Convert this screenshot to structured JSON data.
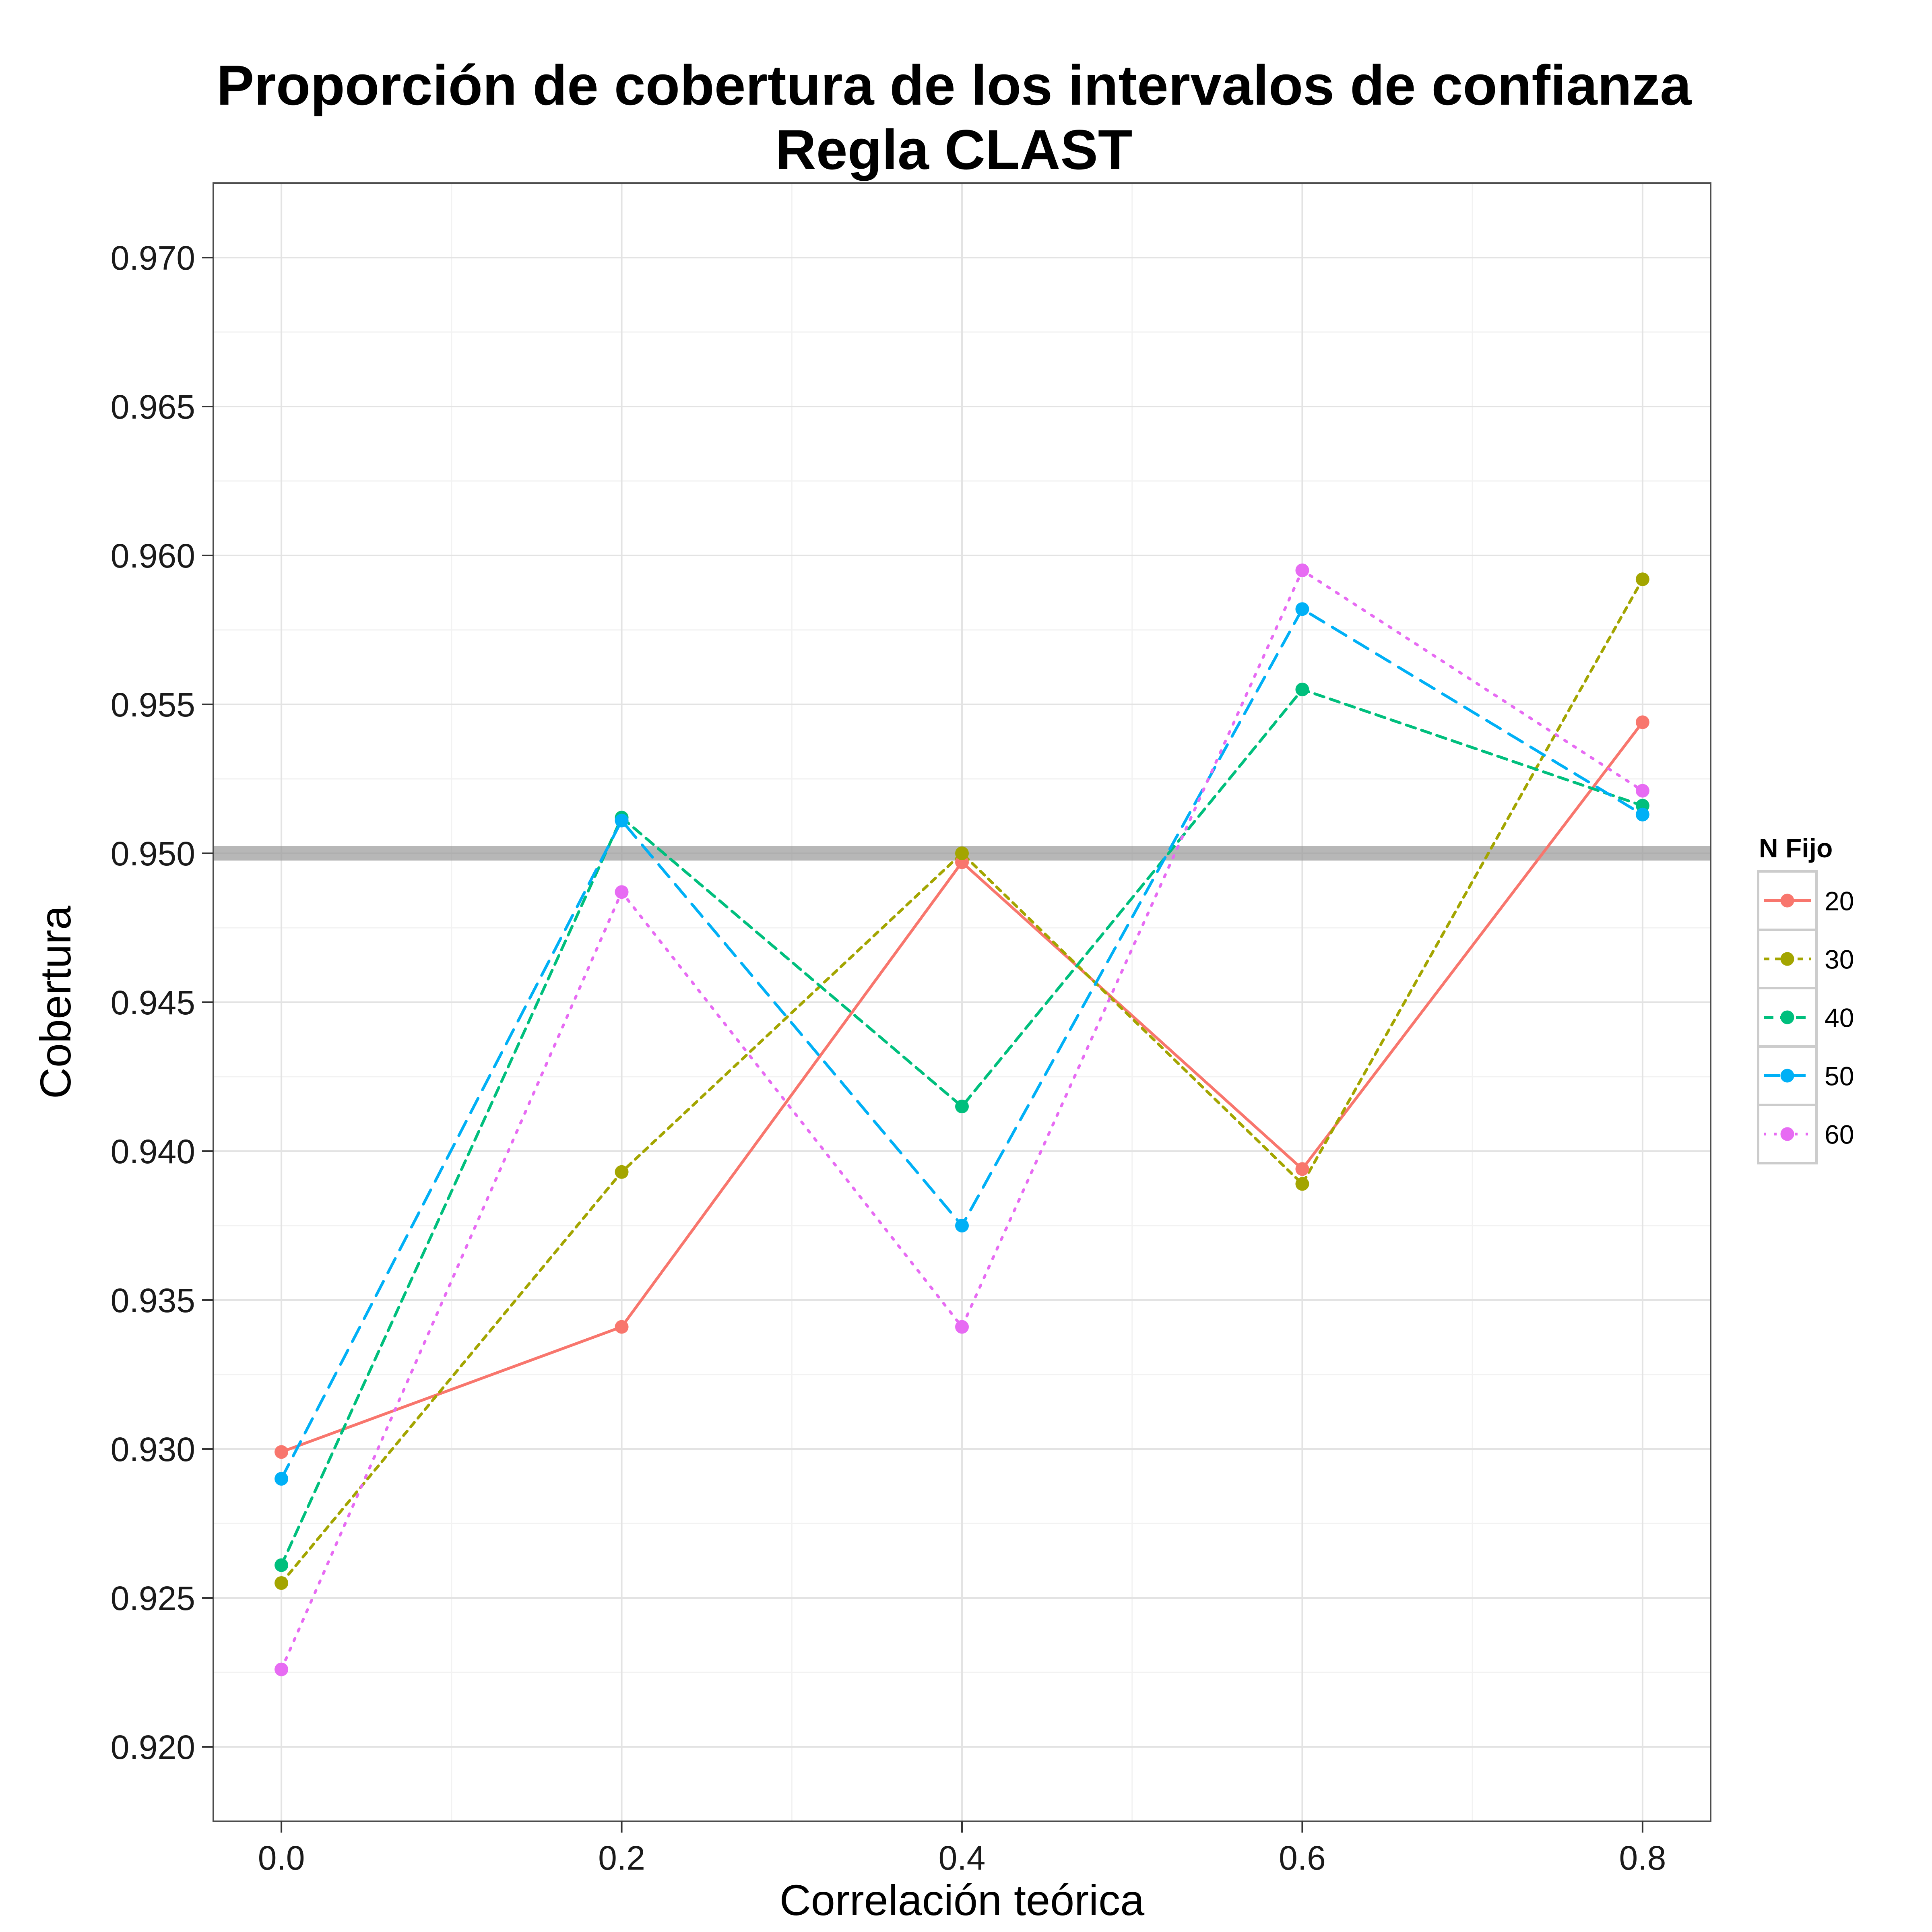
{
  "chart_data": {
    "type": "line",
    "title": "Proporción de cobertura de los intervalos de confianza",
    "subtitle": "Regla CLAST",
    "xlabel": "Correlación teórica",
    "ylabel": "Cobertura",
    "x": [
      0.0,
      0.2,
      0.4,
      0.6,
      0.8
    ],
    "x_tick_labels": [
      "0.0",
      "0.2",
      "0.4",
      "0.6",
      "0.8"
    ],
    "xlim": [
      -0.04,
      0.84
    ],
    "ylim": [
      0.9175,
      0.9725
    ],
    "y_ticks": [
      0.92,
      0.925,
      0.93,
      0.935,
      0.94,
      0.945,
      0.95,
      0.955,
      0.96,
      0.965,
      0.97
    ],
    "y_tick_labels": [
      "0.920",
      "0.925",
      "0.930",
      "0.935",
      "0.940",
      "0.945",
      "0.950",
      "0.955",
      "0.960",
      "0.965",
      "0.970"
    ],
    "reference_line": {
      "y": 0.95,
      "color": "#999999"
    },
    "grid": true,
    "legend": {
      "title": "N Fijo",
      "position": "right"
    },
    "series": [
      {
        "name": "20",
        "color": "#F8766D",
        "dash": "solid",
        "values": [
          0.9299,
          0.9341,
          0.9497,
          0.9394,
          0.9544
        ]
      },
      {
        "name": "30",
        "color": "#A3A500",
        "dash": "dotted",
        "values": [
          0.9255,
          0.9393,
          0.95,
          0.9389,
          0.9592
        ]
      },
      {
        "name": "40",
        "color": "#00BF7D",
        "dash": "dashed",
        "values": [
          0.9261,
          0.9512,
          0.9415,
          0.9555,
          0.9516
        ]
      },
      {
        "name": "50",
        "color": "#00B0F6",
        "dash": "longdash",
        "values": [
          0.929,
          0.9511,
          0.9375,
          0.9582,
          0.9513
        ]
      },
      {
        "name": "60",
        "color": "#E76BF3",
        "dash": "dotted2",
        "values": [
          0.9226,
          0.9487,
          0.9341,
          0.9595,
          0.9521
        ]
      }
    ]
  }
}
